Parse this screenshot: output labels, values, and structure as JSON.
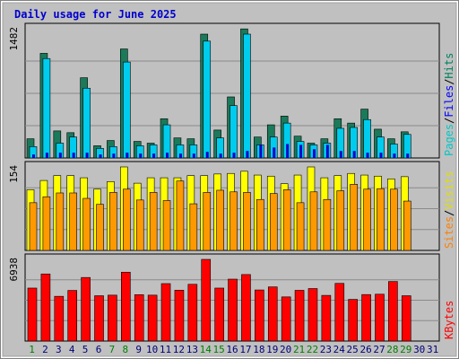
{
  "chart_data": {
    "title": "Daily usage for June 2025",
    "type": "bar",
    "categories": [
      "1",
      "2",
      "3",
      "4",
      "5",
      "6",
      "7",
      "8",
      "9",
      "10",
      "11",
      "12",
      "13",
      "14",
      "15",
      "16",
      "17",
      "18",
      "19",
      "20",
      "21",
      "22",
      "23",
      "24",
      "25",
      "26",
      "27",
      "28",
      "29",
      "30",
      "31"
    ],
    "weekend_days": [
      1,
      7,
      8,
      14,
      15,
      21,
      22,
      28,
      29
    ],
    "panels": [
      {
        "id": "hits-files-pages",
        "ymax_label": "1482",
        "ymax": 1482,
        "legend": [
          {
            "name": "Pages",
            "color": "#00c8c8"
          },
          {
            "name": "Files",
            "color": "#0000ff"
          },
          {
            "name": "Hits",
            "color": "#00805c"
          }
        ],
        "series": [
          {
            "name": "Hits",
            "color": "#1a7a5a",
            "values": [
              220,
              1200,
              310,
              290,
              920,
              140,
              200,
              1250,
              190,
              170,
              450,
              230,
              220,
              1420,
              320,
              700,
              1480,
              240,
              380,
              480,
              250,
              170,
              220,
              450,
              400,
              560,
              330,
              220,
              300,
              null,
              null
            ]
          },
          {
            "name": "Files",
            "color": "#00ccee",
            "values": [
              130,
              1140,
              170,
              240,
              800,
              110,
              130,
              1100,
              140,
              150,
              380,
              150,
              150,
              1340,
              230,
              600,
              1420,
              150,
              240,
              400,
              190,
              150,
              170,
              340,
              350,
              440,
              240,
              160,
              270,
              null,
              null
            ]
          },
          {
            "name": "Pages",
            "color": "#0000cc",
            "values": [
              40,
              60,
              60,
              60,
              60,
              40,
              50,
              60,
              50,
              50,
              60,
              50,
              50,
              70,
              50,
              60,
              80,
              150,
              120,
              160,
              150,
              100,
              150,
              80,
              80,
              60,
              60,
              50,
              50,
              null,
              null
            ]
          }
        ]
      },
      {
        "id": "visits-sites",
        "ymax_label": "154",
        "ymax": 154,
        "legend": [
          {
            "name": "Sites",
            "color": "#ff8000"
          },
          {
            "name": "Visits",
            "color": "#e0e000"
          }
        ],
        "series": [
          {
            "name": "Visits",
            "color": "#ffff00",
            "values": [
              112,
              129,
              138,
              138,
              134,
              113,
              127,
              154,
              124,
              134,
              134,
              134,
              138,
              138,
              141,
              142,
              146,
              139,
              137,
              123,
              139,
              154,
              134,
              138,
              142,
              139,
              137,
              132,
              136,
              null,
              null
            ]
          },
          {
            "name": "Sites",
            "color": "#ff9900",
            "values": [
              88,
              99,
              106,
              106,
              96,
              85,
              107,
              113,
              93,
              107,
              92,
              128,
              86,
              107,
              111,
              108,
              107,
              94,
              105,
              112,
              88,
              108,
              94,
              110,
              122,
              113,
              114,
              113,
              91,
              null,
              null
            ]
          }
        ]
      },
      {
        "id": "kbytes",
        "ymax_label": "6938",
        "ymax": 6938,
        "legend": [
          {
            "name": "KBytes",
            "color": "#ff0000"
          }
        ],
        "series": [
          {
            "name": "KBytes",
            "color": "#ff0000",
            "values": [
              4500,
              5700,
              3800,
              4300,
              5400,
              3850,
              3900,
              5850,
              3940,
              3900,
              4880,
              4320,
              4820,
              6938,
              4500,
              5260,
              5650,
              4340,
              4600,
              3750,
              4310,
              4460,
              3880,
              4900,
              3540,
              3950,
              3980,
              5060,
              3850,
              null,
              null
            ]
          }
        ]
      }
    ]
  },
  "colors": {
    "title": "#0000cc",
    "plot_bg": "#c0c0c0",
    "border_dark": "#808080",
    "day_weekday": "#00007a",
    "day_weekend": "#008000"
  }
}
